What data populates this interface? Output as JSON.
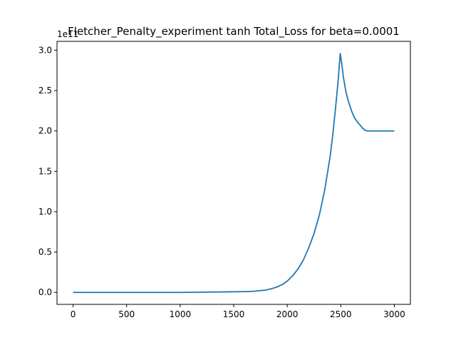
{
  "chart_data": {
    "type": "line",
    "title": "Fletcher_Penalty_experiment tanh Total_Loss for beta=0.0001",
    "xlabel": "",
    "ylabel": "",
    "y_offset_label": "1e11",
    "xlim": [
      -150,
      3150
    ],
    "ylim": [
      -0.148,
      3.11
    ],
    "x_ticks": [
      0,
      500,
      1000,
      1500,
      2000,
      2500,
      3000
    ],
    "y_ticks": [
      0.0,
      0.5,
      1.0,
      1.5,
      2.0,
      2.5,
      3.0
    ],
    "x_tick_labels": [
      "0",
      "500",
      "1000",
      "1500",
      "2000",
      "2500",
      "3000"
    ],
    "y_tick_labels": [
      "0.0",
      "0.5",
      "1.0",
      "1.5",
      "2.0",
      "2.5",
      "3.0"
    ],
    "grid": false,
    "legend": "none",
    "series": [
      {
        "color": "#1f77b4",
        "x": [
          0,
          200,
          400,
          600,
          800,
          1000,
          1200,
          1400,
          1500,
          1600,
          1700,
          1800,
          1850,
          1900,
          1950,
          2000,
          2050,
          2100,
          2150,
          2200,
          2250,
          2300,
          2350,
          2400,
          2425,
          2450,
          2475,
          2495,
          2510,
          2525,
          2550,
          2575,
          2600,
          2625,
          2650,
          2675,
          2700,
          2725,
          2750,
          2800,
          2900,
          3000
        ],
        "y": [
          0.0,
          0.0,
          0.0,
          0.0,
          0.0,
          0.0,
          0.003,
          0.006,
          0.008,
          0.01,
          0.015,
          0.03,
          0.045,
          0.065,
          0.095,
          0.14,
          0.205,
          0.29,
          0.4,
          0.55,
          0.73,
          0.96,
          1.27,
          1.68,
          1.95,
          2.27,
          2.62,
          2.96,
          2.82,
          2.66,
          2.47,
          2.35,
          2.25,
          2.17,
          2.12,
          2.08,
          2.04,
          2.01,
          2.0,
          2.0,
          2.0,
          2.0
        ]
      }
    ]
  }
}
